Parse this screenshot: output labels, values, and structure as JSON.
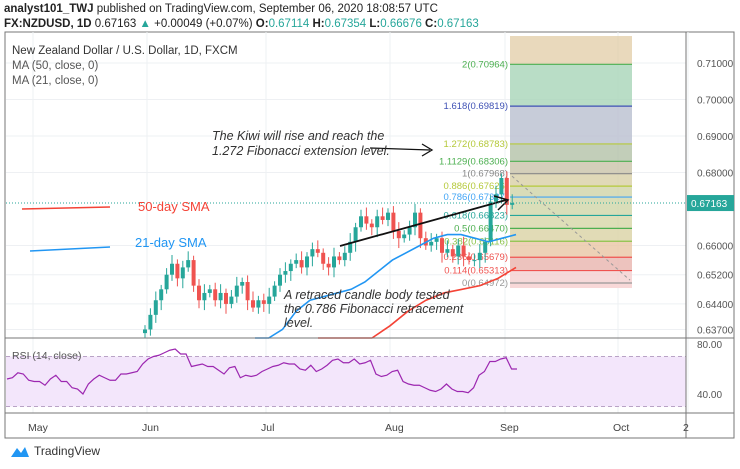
{
  "header": {
    "author": "analyst101_TWJ",
    "published": "published on TradingView.com, September 06, 2020 18:08:57 UTC",
    "symbol": "FX:NZDUSD, 1D",
    "last": "0.67163",
    "change": "+0.00049 (+0.07%)",
    "o_label": "O:",
    "o": "0.67114",
    "h_label": "H:",
    "h": "0.67354",
    "l_label": "L:",
    "l": "0.66676",
    "c_label": "C:",
    "c": "0.67163"
  },
  "legend": {
    "title": "New Zealand Dollar / U.S. Dollar, 1D, FXCM",
    "ma50": "MA (50, close, 0)",
    "ma21": "MA (21, close, 0)"
  },
  "annotations": {
    "sma50": "50-day SMA",
    "sma21": "21-day SMA",
    "kiwi1": "The Kiwi will rise and reach the",
    "kiwi2": "1.272 Fibonacci extension level.",
    "retr1": "A retraced candle body tested",
    "retr2": "the 0.786 Fibonacci retracement",
    "retr3": "level."
  },
  "colors": {
    "up": "#26a69a",
    "down": "#ef5350",
    "sma21": "#2196f3",
    "sma50": "#f44336",
    "rsi": "#9c27b0",
    "price_tag": "#26a69a"
  },
  "chart_data": {
    "type": "candlestick",
    "ylim": [
      0.6355,
      0.7155
    ],
    "price_ticks": [
      "0.71000",
      "0.70000",
      "0.69000",
      "0.68000",
      "0.66000",
      "0.65200",
      "0.64400",
      "0.63700"
    ],
    "price_tick_values": [
      0.71,
      0.7,
      0.69,
      0.68,
      0.66,
      0.652,
      0.644,
      0.637
    ],
    "current_price": "0.67163",
    "time_labels": [
      "May",
      "Jun",
      "Jul",
      "Aug",
      "Sep",
      "Oct",
      "2"
    ],
    "closes": [
      0.637,
      0.641,
      0.645,
      0.648,
      0.652,
      0.655,
      0.651,
      0.654,
      0.656,
      0.649,
      0.645,
      0.647,
      0.648,
      0.645,
      0.647,
      0.644,
      0.646,
      0.649,
      0.65,
      0.645,
      0.643,
      0.645,
      0.644,
      0.646,
      0.649,
      0.652,
      0.653,
      0.655,
      0.656,
      0.654,
      0.657,
      0.659,
      0.658,
      0.655,
      0.654,
      0.657,
      0.656,
      0.658,
      0.661,
      0.665,
      0.668,
      0.666,
      0.665,
      0.668,
      0.667,
      0.669,
      0.664,
      0.662,
      0.663,
      0.665,
      0.669,
      0.662,
      0.66,
      0.661,
      0.662,
      0.658,
      0.659,
      0.657,
      0.66,
      0.657,
      0.656,
      0.656,
      0.658,
      0.661,
      0.672,
      0.674,
      0.6785,
      0.67114,
      0.67163
    ],
    "first_open": 0.636,
    "sma21": [
      0.63,
      0.633,
      0.637,
      0.642,
      0.645,
      0.646,
      0.647,
      0.648,
      0.65,
      0.653,
      0.656,
      0.658,
      0.66,
      0.662,
      0.663,
      0.663,
      0.662,
      0.661,
      0.662,
      0.663
    ],
    "sma50": [
      0.622,
      0.626,
      0.63,
      0.634,
      0.638,
      0.642,
      0.645,
      0.647,
      0.648,
      0.649,
      0.651,
      0.654
    ],
    "fibonacci": [
      {
        "ratio": "2",
        "value": "0.70964",
        "v": 0.70964,
        "color": "#4caf50"
      },
      {
        "ratio": "1.618",
        "value": "0.69819",
        "v": 0.69819,
        "color": "#3f51b5"
      },
      {
        "ratio": "1.272",
        "value": "0.68783",
        "v": 0.68783,
        "color": "#b5c93a"
      },
      {
        "ratio": "1.1129",
        "value": "0.68306",
        "v": 0.68306,
        "color": "#4caf50"
      },
      {
        "ratio": "1",
        "value": "0.67968",
        "v": 0.67968,
        "color": "#888888"
      },
      {
        "ratio": "0.886",
        "value": "0.67626",
        "v": 0.67626,
        "color": "#b5c93a"
      },
      {
        "ratio": "0.786",
        "value": "0.67327",
        "v": 0.67327,
        "color": "#42a5f5"
      },
      {
        "ratio": "0.618",
        "value": "0.66823",
        "v": 0.66823,
        "color": "#26a69a"
      },
      {
        "ratio": "0.5",
        "value": "0.66470",
        "v": 0.6647,
        "color": "#4caf50"
      },
      {
        "ratio": "0.382",
        "value": "0.66116",
        "v": 0.66116,
        "color": "#8bc34a"
      },
      {
        "ratio": "0.236",
        "value": "0.65679",
        "v": 0.65679,
        "color": "#ef5350"
      },
      {
        "ratio": "0.114",
        "value": "0.65313",
        "v": 0.65313,
        "color": "#ef5350"
      },
      {
        "ratio": "0",
        "value": "0.64972",
        "v": 0.64972,
        "color": "#999999"
      }
    ],
    "rsi": {
      "label": "RSI (14, close)",
      "ticks": [
        "80.00",
        "40.00"
      ],
      "upper": 70,
      "lower": 30,
      "values": [
        52,
        53,
        57,
        56,
        51,
        50,
        50,
        47,
        52,
        55,
        50,
        50,
        45,
        44,
        40,
        48,
        52,
        55,
        53,
        51,
        51,
        56,
        56,
        57,
        58,
        64,
        68,
        70,
        71,
        73,
        75,
        76,
        72,
        72,
        62,
        63,
        64,
        62,
        62,
        59,
        56,
        61,
        62,
        53,
        55,
        54,
        55,
        58,
        60,
        62,
        63,
        65,
        64,
        64,
        60,
        59,
        63,
        58,
        60,
        63,
        67,
        68,
        65,
        65,
        68,
        64,
        65,
        67,
        56,
        54,
        55,
        58,
        59,
        50,
        48,
        47,
        47,
        45,
        43,
        42,
        44,
        48,
        44,
        42,
        42,
        41,
        45,
        55,
        58,
        66,
        66,
        68,
        69,
        60,
        60
      ]
    }
  },
  "footer": {
    "brand": "TradingView"
  }
}
